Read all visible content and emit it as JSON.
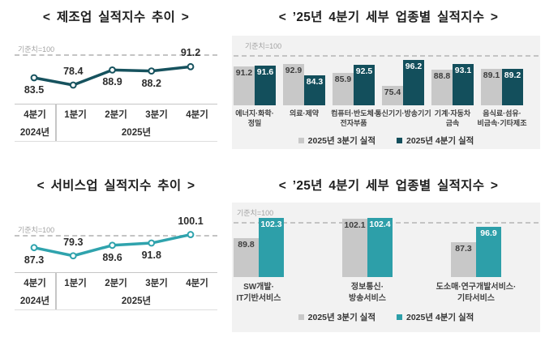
{
  "chart_data": [
    {
      "id": "manufacturing-trend",
      "type": "line",
      "title": "< 제조업 실적지수 추이 >",
      "baseline_label": "기준치=100",
      "baseline_value": 100,
      "categories": [
        "4분기",
        "1분기",
        "2분기",
        "3분기",
        "4분기"
      ],
      "year_row": [
        {
          "label": "2024년",
          "cols": 1
        },
        {
          "label": "2025년",
          "cols": 4
        }
      ],
      "values": [
        83.5,
        78.4,
        88.9,
        88.2,
        91.2
      ],
      "label_positions": [
        "below",
        "above",
        "below",
        "below",
        "above"
      ],
      "line_color": "#16525e",
      "ylim": [
        66,
        110
      ],
      "grid": "dashed-baseline-only",
      "legend_position": "none"
    },
    {
      "id": "manufacturing-detail",
      "type": "bar",
      "title": "< ’25년 4분기 세부 업종별 실적지수 >",
      "baseline_label": "기준치=100",
      "baseline_value": 100,
      "categories": [
        [
          "에너지·화학·",
          "정밀"
        ],
        [
          "의료·제약"
        ],
        [
          "컴퓨터·반도체·",
          "전자부품"
        ],
        [
          "통신기기·방송기기"
        ],
        [
          "기계·자동차",
          "금속"
        ],
        [
          "음식료·섬유·",
          "비금속·기타제조"
        ]
      ],
      "series": [
        {
          "name": "2025년 3분기 실적",
          "color": "#c8c8c8",
          "label_color": "#3d3d3d",
          "values": [
            91.2,
            92.9,
            85.9,
            75.4,
            88.8,
            89.1
          ]
        },
        {
          "name": "2025년 4분기 실적",
          "color": "#134f5c",
          "label_color": "#ffffff",
          "values": [
            91.6,
            84.3,
            92.5,
            96.2,
            93.1,
            89.2
          ]
        }
      ],
      "ylim": [
        60,
        101.5
      ],
      "grid": "dashed-baseline-only",
      "legend_position": "bottom"
    },
    {
      "id": "services-trend",
      "type": "line",
      "title": "< 서비스업 실적지수 추이 >",
      "baseline_label": "기준치=100",
      "baseline_value": 100,
      "categories": [
        "4분기",
        "1분기",
        "2분기",
        "3분기",
        "4분기"
      ],
      "year_row": [
        {
          "label": "2024년",
          "cols": 1
        },
        {
          "label": "2025년",
          "cols": 4
        }
      ],
      "values": [
        87.3,
        79.3,
        89.6,
        91.8,
        100.1
      ],
      "label_positions": [
        "below",
        "above",
        "below",
        "below",
        "above"
      ],
      "line_color": "#2fa3ad",
      "ylim": [
        64,
        126
      ],
      "grid": "dashed-baseline-only",
      "legend_position": "none"
    },
    {
      "id": "services-detail",
      "type": "bar",
      "title": "< ’25년 4분기 세부 업종별 실적지수 >",
      "baseline_label": "기준치=100",
      "baseline_value": 100,
      "categories": [
        [
          "SW개발·",
          "IT기반서비스"
        ],
        [
          "정보통신·",
          "방송서비스"
        ],
        [
          "도소매·연구개발서비스·",
          "기타서비스"
        ]
      ],
      "series": [
        {
          "name": "2025년 3분기 실적",
          "color": "#c8c8c8",
          "label_color": "#3d3d3d",
          "values": [
            89.8,
            102.1,
            87.3
          ]
        },
        {
          "name": "2025년 4분기 실적",
          "color": "#2d9fa9",
          "label_color": "#ffffff",
          "values": [
            102.3,
            102.4,
            96.9
          ]
        }
      ],
      "ylim": [
        66,
        104
      ],
      "grid": "dashed-baseline-only",
      "legend_position": "bottom"
    }
  ],
  "colors": {
    "q3_gray": "#c8c8c8",
    "q4_dark_teal": "#134f5c",
    "q4_light_teal": "#2d9fa9",
    "panel_bg": "#f2f2f2",
    "dashed_gridline": "#c4c4c4"
  }
}
